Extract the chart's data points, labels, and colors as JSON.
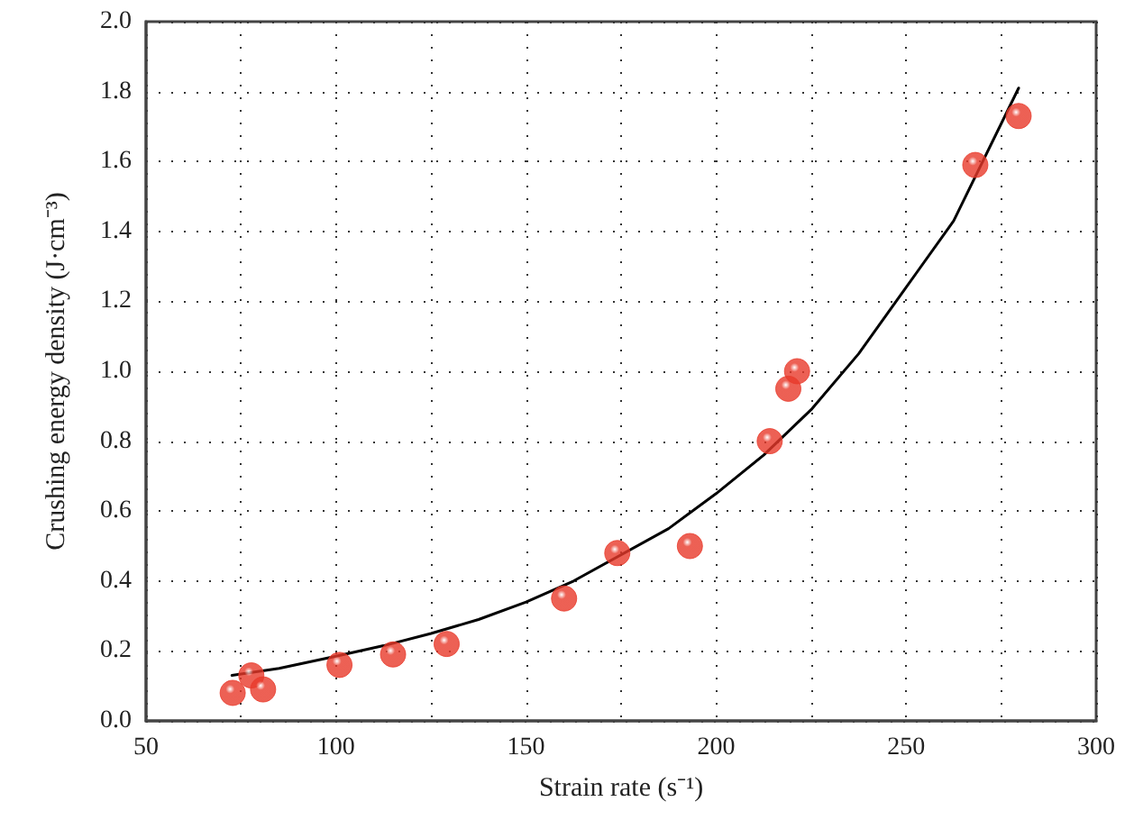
{
  "chart_data": {
    "type": "scatter",
    "xlabel": "Strain rate (s⁻¹)",
    "ylabel": "Crushing energy density (J·cm⁻³)",
    "xlim": [
      50,
      300
    ],
    "ylim": [
      0,
      2.0
    ],
    "xticks": [
      50,
      {
        "value": 75,
        "label": null
      },
      100,
      {
        "value": 125,
        "label": null
      },
      150,
      {
        "value": 175,
        "label": null
      },
      200,
      {
        "value": 225,
        "label": null
      },
      250,
      {
        "value": 275,
        "label": null
      },
      300
    ],
    "yticks": [
      {
        "value": 0,
        "label": "0.0"
      },
      0.2,
      0.4,
      0.6,
      0.8,
      {
        "value": 1,
        "label": "1.0"
      },
      1.2,
      1.4,
      1.6,
      1.8,
      {
        "value": 2,
        "label": "2.0"
      }
    ],
    "grid": true,
    "marker": "circle",
    "series": [
      {
        "color": "#e8392a",
        "x": [
          72.8,
          77.7,
          80.8,
          100.9,
          115,
          129.1,
          160,
          174,
          193.1,
          214.1,
          219,
          221.3,
          268.2,
          279.6
        ],
        "values": [
          0.08,
          0.13,
          0.09,
          0.16,
          0.19,
          0.22,
          0.35,
          0.48,
          0.5,
          0.8,
          0.95,
          1.0,
          1.59,
          1.73
        ]
      },
      {
        "type": "line",
        "color": "#000000",
        "marker": "none",
        "line_style": "solid",
        "x": [
          72.6,
          85,
          100,
          112.5,
          125,
          137.5,
          150,
          162.5,
          187.5,
          200,
          212.5,
          225,
          237.5,
          250,
          262.5,
          279.6
        ],
        "values": [
          0.13,
          0.15,
          0.185,
          0.215,
          0.25,
          0.29,
          0.34,
          0.4,
          0.55,
          0.65,
          0.76,
          0.89,
          1.05,
          1.24,
          1.43,
          1.81
        ]
      }
    ]
  }
}
